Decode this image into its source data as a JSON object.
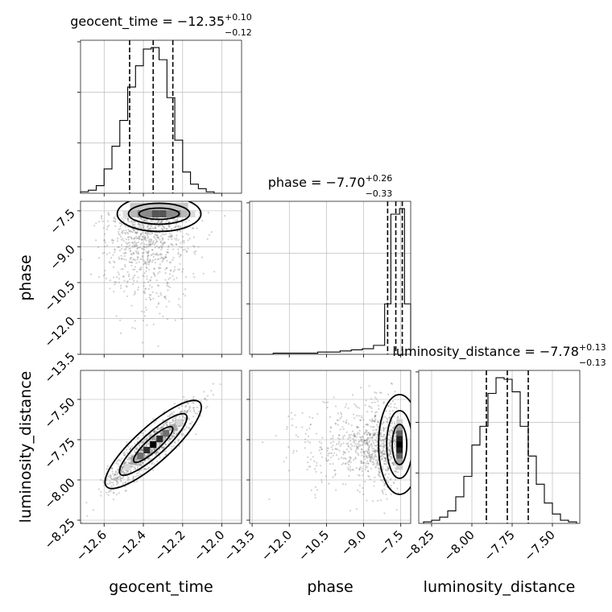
{
  "figure": {
    "type": "corner-plot",
    "parameters": [
      "geocent_time",
      "phase",
      "luminosity_distance"
    ]
  },
  "chart_data": [
    {
      "type": "histogram",
      "panel": "geocent_time-marginal",
      "title": {
        "label": "geocent_time",
        "eq": " = ",
        "median": "−12.35",
        "plus": "+0.10",
        "minus": "−0.12"
      },
      "xlim": [
        -12.72,
        -11.9
      ],
      "xticks": [
        -12.6,
        -12.4,
        -12.2,
        -12.0
      ],
      "bins": [
        -12.72,
        -12.68,
        -12.64,
        -12.6,
        -12.56,
        -12.52,
        -12.48,
        -12.44,
        -12.4,
        -12.36,
        -12.32,
        -12.28,
        -12.24,
        -12.2,
        -12.16,
        -12.12,
        -12.08,
        -12.04,
        -12.0
      ],
      "counts": [
        1,
        2,
        5,
        16,
        31,
        48,
        70,
        84,
        95,
        96,
        88,
        63,
        35,
        14,
        6,
        3,
        1,
        0
      ],
      "quantiles": [
        -12.47,
        -12.35,
        -12.25
      ]
    },
    {
      "type": "scatter-density",
      "panel": "phase-vs-geocent_time",
      "xlim": [
        -12.72,
        -11.9
      ],
      "ylim": [
        -13.5,
        -7.1
      ],
      "yticks": [
        -7.5,
        -9.0,
        -10.5,
        -12.0,
        -13.5
      ],
      "ylabel": "phase",
      "density_peak": {
        "x": -12.35,
        "y": -7.6
      }
    },
    {
      "type": "histogram",
      "panel": "phase-marginal",
      "title": {
        "label": "phase",
        "eq": " = ",
        "median": "−7.70",
        "plus": "+0.26",
        "minus": "−0.33"
      },
      "xlim": [
        -13.6,
        -7.1
      ],
      "xticks": [
        -13.5,
        -12.0,
        -10.5,
        -9.0,
        -7.5
      ],
      "bins": [
        -13.55,
        -13.1,
        -12.65,
        -12.2,
        -11.75,
        -11.3,
        -10.85,
        -10.4,
        -9.95,
        -9.5,
        -9.05,
        -8.6,
        -8.15,
        -7.9,
        -7.55,
        -7.35,
        -7.1
      ],
      "counts": [
        0,
        0,
        1,
        1,
        1,
        1,
        2,
        2,
        3,
        4,
        5,
        8,
        45,
        125,
        130,
        45
      ],
      "quantiles": [
        -8.03,
        -7.7,
        -7.44
      ]
    },
    {
      "type": "scatter-density",
      "panel": "luminosity_distance-vs-geocent_time",
      "xlim": [
        -12.72,
        -11.9
      ],
      "ylim": [
        -8.27,
        -7.32
      ],
      "xticks": [
        -12.6,
        -12.4,
        -12.2,
        -12.0
      ],
      "yticks": [
        -7.5,
        -7.75,
        -8.0,
        -8.25
      ],
      "xlabel": "geocent_time",
      "ylabel": "luminosity_distance",
      "correlation": 0.9
    },
    {
      "type": "scatter-density",
      "panel": "luminosity_distance-vs-phase",
      "xlim": [
        -13.6,
        -7.1
      ],
      "ylim": [
        -8.27,
        -7.32
      ],
      "xticks": [
        -13.5,
        -12.0,
        -10.5,
        -9.0,
        -7.5
      ],
      "xlabel": "phase"
    },
    {
      "type": "histogram",
      "panel": "luminosity_distance-marginal",
      "title": {
        "label": "luminosity_distance",
        "eq": " = ",
        "median": "−7.78",
        "plus": "+0.13",
        "minus": "−0.13"
      },
      "xlim": [
        -8.33,
        -7.33
      ],
      "xticks": [
        -8.25,
        -8.0,
        -7.75,
        -7.5
      ],
      "xlabel": "luminosity_distance",
      "bins": [
        -8.3,
        -8.25,
        -8.2,
        -8.15,
        -8.1,
        -8.05,
        -8.0,
        -7.95,
        -7.9,
        -7.85,
        -7.8,
        -7.75,
        -7.7,
        -7.65,
        -7.6,
        -7.55,
        -7.5,
        -7.45,
        -7.4,
        -7.35
      ],
      "counts": [
        1,
        2,
        4,
        8,
        17,
        30,
        50,
        62,
        83,
        93,
        92,
        84,
        62,
        43,
        25,
        13,
        6,
        2,
        1
      ],
      "quantiles": [
        -7.91,
        -7.78,
        -7.65
      ]
    }
  ]
}
